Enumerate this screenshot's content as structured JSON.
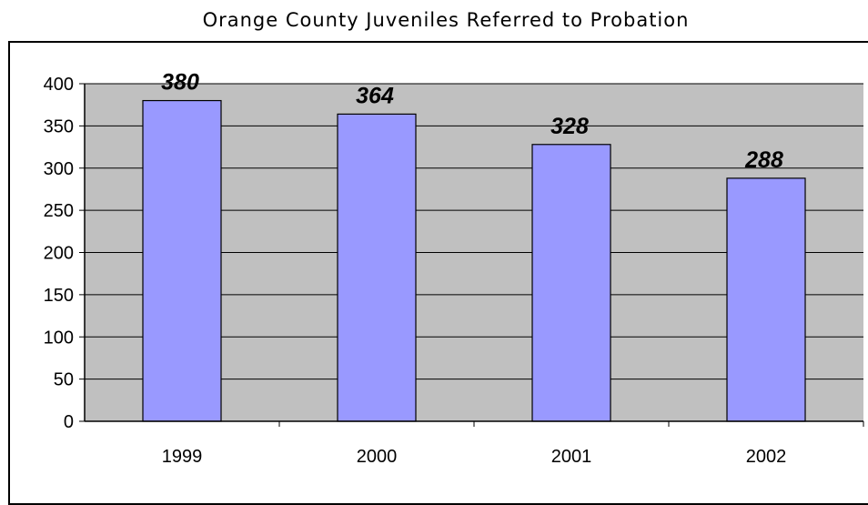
{
  "chart_data": {
    "type": "bar",
    "title": "Orange County Juveniles Referred to Probation",
    "xlabel": "",
    "ylabel": "",
    "categories": [
      "1999",
      "2000",
      "2001",
      "2002"
    ],
    "values": [
      380,
      364,
      328,
      288
    ],
    "data_labels": [
      "380",
      "364",
      "328",
      "288"
    ],
    "ylim": [
      0,
      400
    ],
    "y_ticks": [
      "0",
      "50",
      "100",
      "150",
      "200",
      "250",
      "300",
      "350",
      "400"
    ],
    "grid": true,
    "legend": "none",
    "colors": {
      "bar_fill": "#9999ff",
      "plot_background": "#c0c0c0",
      "gridline": "#000000"
    }
  }
}
